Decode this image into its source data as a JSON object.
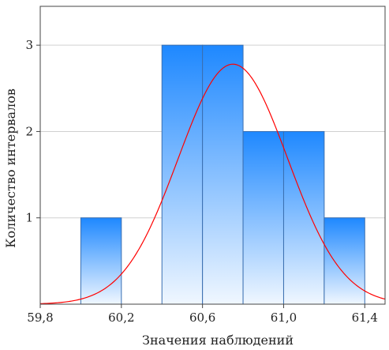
{
  "chart_data": {
    "type": "bar",
    "title": "",
    "xlabel": "Значения наблюдений",
    "ylabel": "Количество интервалов",
    "xlim": [
      59.8,
      61.5
    ],
    "ylim": [
      0,
      3.45
    ],
    "grid": true,
    "x_ticks": [
      59.8,
      60.2,
      60.6,
      61.0,
      61.4
    ],
    "x_tick_labels": [
      "59,8",
      "60,2",
      "60,6",
      "61,0",
      "61,4"
    ],
    "y_ticks": [
      1,
      2,
      3
    ],
    "y_tick_labels": [
      "1",
      "2",
      "3"
    ],
    "bins": [
      {
        "start": 60.0,
        "end": 60.2,
        "count": 1
      },
      {
        "start": 60.2,
        "end": 60.4,
        "count": 0
      },
      {
        "start": 60.4,
        "end": 60.6,
        "count": 3
      },
      {
        "start": 60.6,
        "end": 60.8,
        "count": 3
      },
      {
        "start": 60.8,
        "end": 61.0,
        "count": 2
      },
      {
        "start": 61.0,
        "end": 61.2,
        "count": 2
      },
      {
        "start": 61.2,
        "end": 61.4,
        "count": 1
      }
    ],
    "fit_curve": {
      "type": "normal",
      "mean": 60.75,
      "sd": 0.27,
      "peak": 2.78
    },
    "colors": {
      "bar_top": "#1e88ff",
      "bar_bottom": "#f0f7ff",
      "bar_edge": "#3a6fb0",
      "curve": "#ff0000",
      "grid": "#d0d0d0",
      "frame": "#444444"
    }
  }
}
